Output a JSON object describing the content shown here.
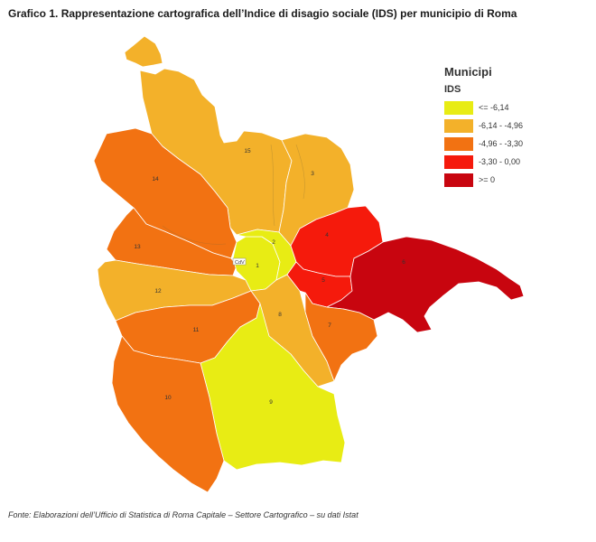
{
  "title": "Grafico 1. Rappresentazione cartografica dell’Indice di disagio sociale (IDS) per municipio di Roma",
  "source": "Fonte: Elaborazioni dell’Ufficio di Statistica di Roma Capitale – Settore Cartografico – su dati Istat",
  "legend": {
    "title": "Municipi",
    "subtitle": "IDS",
    "classes": [
      {
        "label": "<= -6,14",
        "color": "#e8ec14"
      },
      {
        "label": "-6,14 - -4,96",
        "color": "#f3b12a"
      },
      {
        "label": "-4,96 - -3,30",
        "color": "#f27212"
      },
      {
        "label": "-3,30 - 0,00",
        "color": "#f51a0c"
      },
      {
        "label": ">= 0",
        "color": "#c8050f"
      }
    ]
  },
  "map": {
    "vatican_label": "CdV",
    "municipi": [
      {
        "label": "1",
        "ids_class": 0
      },
      {
        "label": "2",
        "ids_class": 0
      },
      {
        "label": "3",
        "ids_class": 1
      },
      {
        "label": "4",
        "ids_class": 3
      },
      {
        "label": "5",
        "ids_class": 3
      },
      {
        "label": "6",
        "ids_class": 4
      },
      {
        "label": "7",
        "ids_class": 2
      },
      {
        "label": "8",
        "ids_class": 1
      },
      {
        "label": "9",
        "ids_class": 0
      },
      {
        "label": "10",
        "ids_class": 2
      },
      {
        "label": "11",
        "ids_class": 2
      },
      {
        "label": "12",
        "ids_class": 1
      },
      {
        "label": "13",
        "ids_class": 2
      },
      {
        "label": "14",
        "ids_class": 2
      },
      {
        "label": "15",
        "ids_class": 1
      }
    ]
  }
}
